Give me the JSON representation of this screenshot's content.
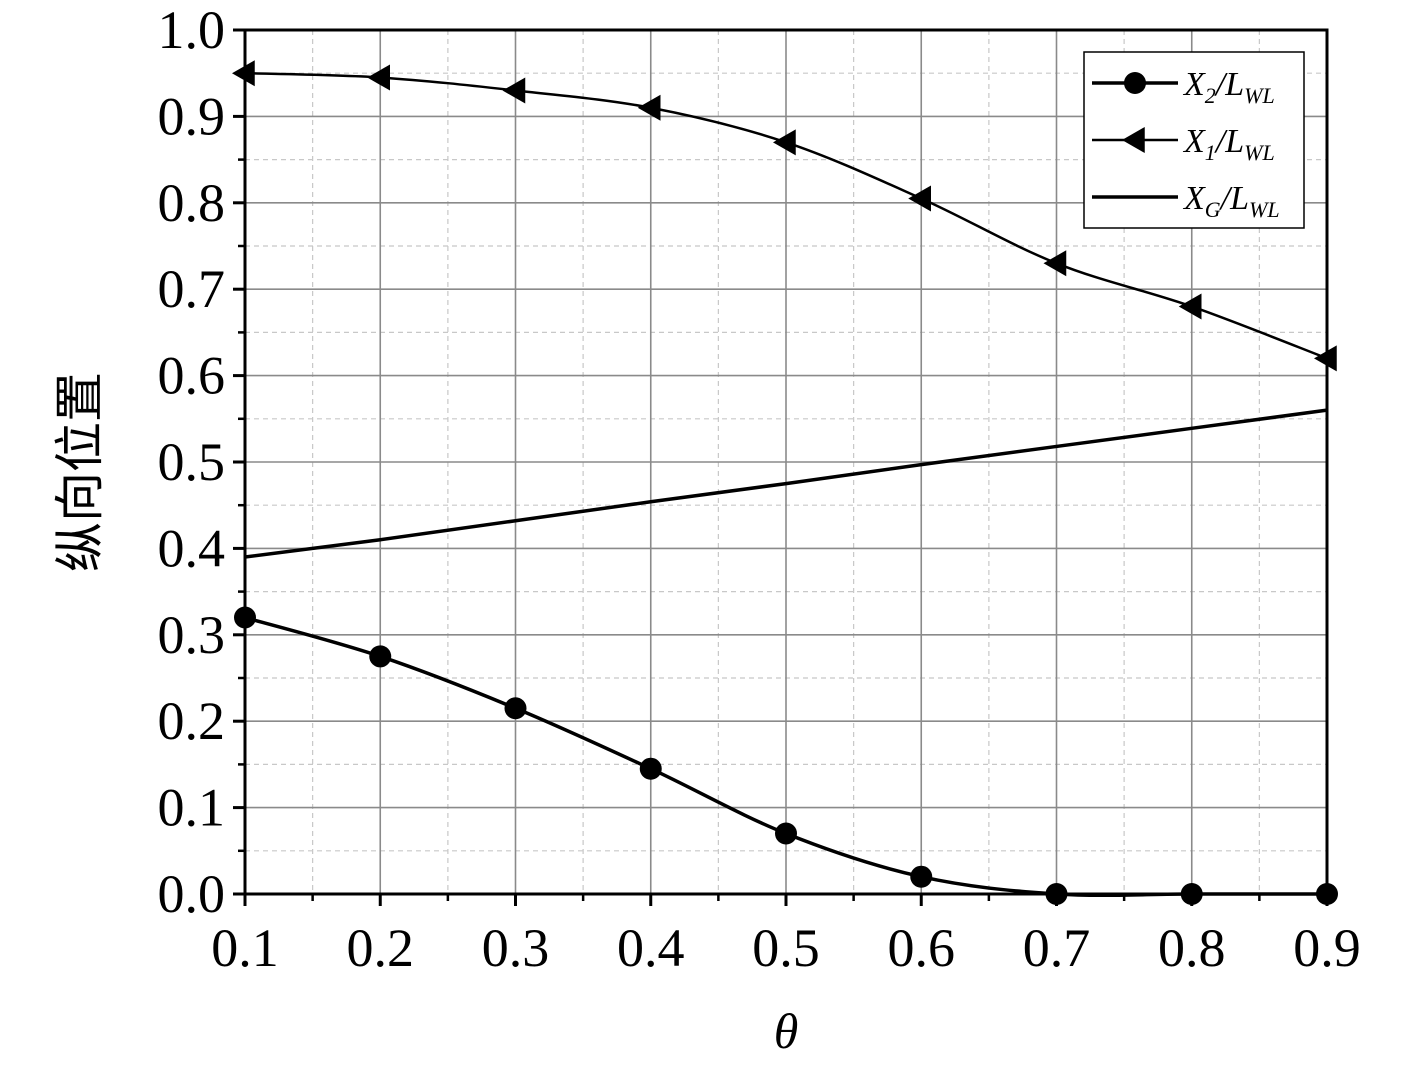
{
  "chart_data": {
    "type": "line",
    "xlabel": "θ",
    "ylabel": "纵向位置",
    "xlim": [
      0.1,
      0.9
    ],
    "ylim": [
      0.0,
      1.0
    ],
    "x_ticks": [
      "0.1",
      "0.2",
      "0.3",
      "0.4",
      "0.5",
      "0.6",
      "0.7",
      "0.8",
      "0.9"
    ],
    "y_ticks": [
      "0.0",
      "0.1",
      "0.2",
      "0.3",
      "0.4",
      "0.5",
      "0.6",
      "0.7",
      "0.8",
      "0.9",
      "1.0"
    ],
    "grid": true,
    "legend_position": "top-right",
    "x": [
      0.1,
      0.2,
      0.3,
      0.4,
      0.5,
      0.6,
      0.7,
      0.8,
      0.9
    ],
    "series": [
      {
        "name": "X2/LWL",
        "legend": {
          "main": "X",
          "sub": "2",
          "mid": "/L",
          "sub2": "WL"
        },
        "marker": "circle",
        "values": [
          0.32,
          0.275,
          0.215,
          0.145,
          0.07,
          0.02,
          0.0,
          0.0,
          0.0
        ]
      },
      {
        "name": "X1/LWL",
        "legend": {
          "main": "X",
          "sub": "1",
          "mid": "/L",
          "sub2": "WL"
        },
        "marker": "triangle-left",
        "values": [
          0.95,
          0.945,
          0.93,
          0.91,
          0.87,
          0.805,
          0.73,
          0.68,
          0.62
        ]
      },
      {
        "name": "XG/LWL",
        "legend": {
          "main": "X",
          "sub": "G",
          "mid": "/L",
          "sub2": "WL"
        },
        "marker": "none",
        "values": [
          0.39,
          0.41,
          0.432,
          0.454,
          0.475,
          0.497,
          0.518,
          0.539,
          0.56
        ]
      }
    ],
    "colors": {
      "line": "#000000",
      "grid_major": "#8a8a8a",
      "grid_minor": "#c8c8c8"
    }
  }
}
